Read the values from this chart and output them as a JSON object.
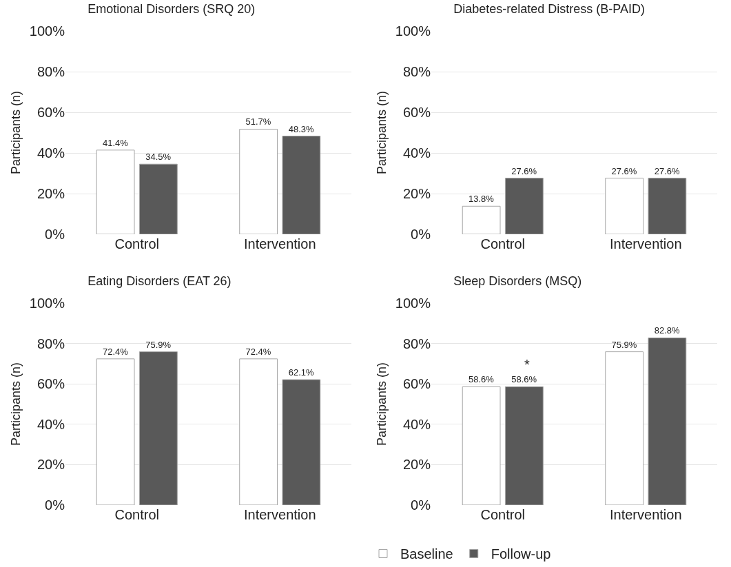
{
  "chart_data": [
    {
      "type": "bar",
      "title": "Emotional Disorders (SRQ 20)",
      "ylabel": "Participants (n)",
      "categories": [
        "Control",
        "Intervention"
      ],
      "ylim": [
        0,
        100
      ],
      "yticks": [
        {
          "value": 0,
          "label": "0%"
        },
        {
          "value": 20,
          "label": "20%"
        },
        {
          "value": 40,
          "label": "40%"
        },
        {
          "value": 60,
          "label": "60%"
        },
        {
          "value": 80,
          "label": "80%"
        },
        {
          "value": 100,
          "label": "100%"
        }
      ],
      "grid": "y",
      "legend": false,
      "series": [
        {
          "color": "#ffffff",
          "values": [
            41.4,
            51.7
          ],
          "value_labels": [
            "41.4%",
            "51.7%"
          ]
        },
        {
          "color": "#595959",
          "values": [
            34.5,
            48.3
          ],
          "value_labels": [
            "34.5%",
            "48.3%"
          ]
        }
      ]
    },
    {
      "type": "bar",
      "title": "Diabetes-related Distress (B-PAID)",
      "ylabel": "Participants (n)",
      "categories": [
        "Control",
        "Intervention"
      ],
      "ylim": [
        0,
        100
      ],
      "yticks": [
        {
          "value": 0,
          "label": "0%"
        },
        {
          "value": 20,
          "label": "20%"
        },
        {
          "value": 40,
          "label": "40%"
        },
        {
          "value": 60,
          "label": "60%"
        },
        {
          "value": 80,
          "label": "80%"
        },
        {
          "value": 100,
          "label": "100%"
        }
      ],
      "grid": "y",
      "legend": false,
      "series": [
        {
          "color": "#ffffff",
          "values": [
            13.8,
            27.6
          ],
          "value_labels": [
            "13.8%",
            "27.6%"
          ]
        },
        {
          "color": "#595959",
          "values": [
            27.6,
            27.6
          ],
          "value_labels": [
            "27.6%",
            "27.6%"
          ]
        }
      ]
    },
    {
      "type": "bar",
      "title": "Eating Disorders (EAT 26)",
      "ylabel": "Participants (n)",
      "categories": [
        "Control",
        "Intervention"
      ],
      "ylim": [
        0,
        100
      ],
      "yticks": [
        {
          "value": 0,
          "label": "0%"
        },
        {
          "value": 20,
          "label": "20%"
        },
        {
          "value": 40,
          "label": "40%"
        },
        {
          "value": 60,
          "label": "60%"
        },
        {
          "value": 80,
          "label": "80%"
        },
        {
          "value": 100,
          "label": "100%"
        }
      ],
      "grid": "y",
      "legend": false,
      "series": [
        {
          "color": "#ffffff",
          "values": [
            72.4,
            72.4
          ],
          "value_labels": [
            "72.4%",
            "72.4%"
          ]
        },
        {
          "color": "#595959",
          "values": [
            75.9,
            62.1
          ],
          "value_labels": [
            "75.9%",
            "62.1%"
          ]
        }
      ]
    },
    {
      "type": "bar",
      "title": "Sleep Disorders (MSQ)",
      "ylabel": "Participants (n)",
      "categories": [
        "Control",
        "Intervention"
      ],
      "ylim": [
        0,
        100
      ],
      "yticks": [
        {
          "value": 0,
          "label": "0%"
        },
        {
          "value": 20,
          "label": "20%"
        },
        {
          "value": 40,
          "label": "40%"
        },
        {
          "value": 60,
          "label": "60%"
        },
        {
          "value": 80,
          "label": "80%"
        },
        {
          "value": 100,
          "label": "100%"
        }
      ],
      "grid": "y",
      "legend": "bottom",
      "annotations": [
        {
          "text": "*",
          "x": "Control",
          "y": 58.6
        }
      ],
      "series": [
        {
          "name": "Baseline",
          "color": "#ffffff",
          "values": [
            58.6,
            75.9
          ],
          "value_labels": [
            "58.6%",
            "75.9%"
          ]
        },
        {
          "name": "Follow-up",
          "color": "#595959",
          "values": [
            58.6,
            82.8
          ],
          "value_labels": [
            "58.6%",
            "82.8%"
          ]
        }
      ]
    }
  ]
}
